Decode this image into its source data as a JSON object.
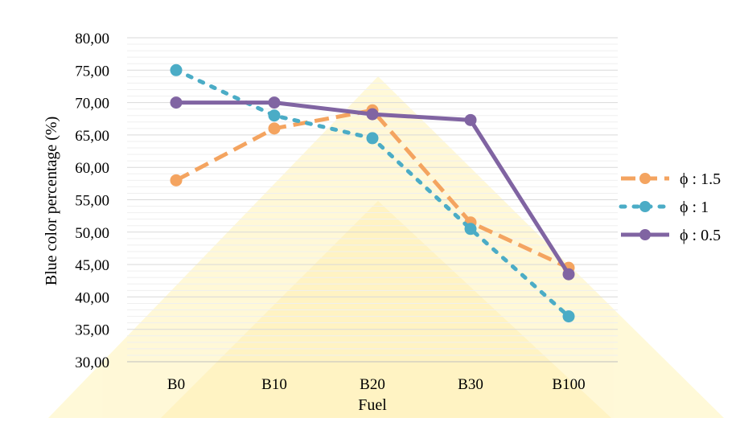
{
  "chart_data": {
    "type": "line",
    "categories": [
      "B0",
      "B10",
      "B20",
      "B30",
      "B100"
    ],
    "xlabel": "Fuel",
    "ylabel": "Blue color percentage (%)",
    "ylim": [
      30,
      80
    ],
    "yticks": [
      "30,00",
      "35,00",
      "40,00",
      "45,00",
      "50,00",
      "55,00",
      "60,00",
      "65,00",
      "70,00",
      "75,00",
      "80,00"
    ],
    "grid": true,
    "legend_position": "right",
    "series": [
      {
        "name": "ϕ : 1.5",
        "values": [
          58.0,
          66.0,
          68.8,
          51.5,
          44.5
        ],
        "color": "#F4A460",
        "style": "dashed"
      },
      {
        "name": "ϕ : 1",
        "values": [
          75.0,
          68.0,
          64.5,
          50.5,
          37.0
        ],
        "color": "#4BACC6",
        "style": "dotted"
      },
      {
        "name": "ϕ : 0.5",
        "values": [
          70.0,
          70.0,
          68.2,
          67.3,
          43.5
        ],
        "color": "#8064A2",
        "style": "solid"
      }
    ]
  }
}
